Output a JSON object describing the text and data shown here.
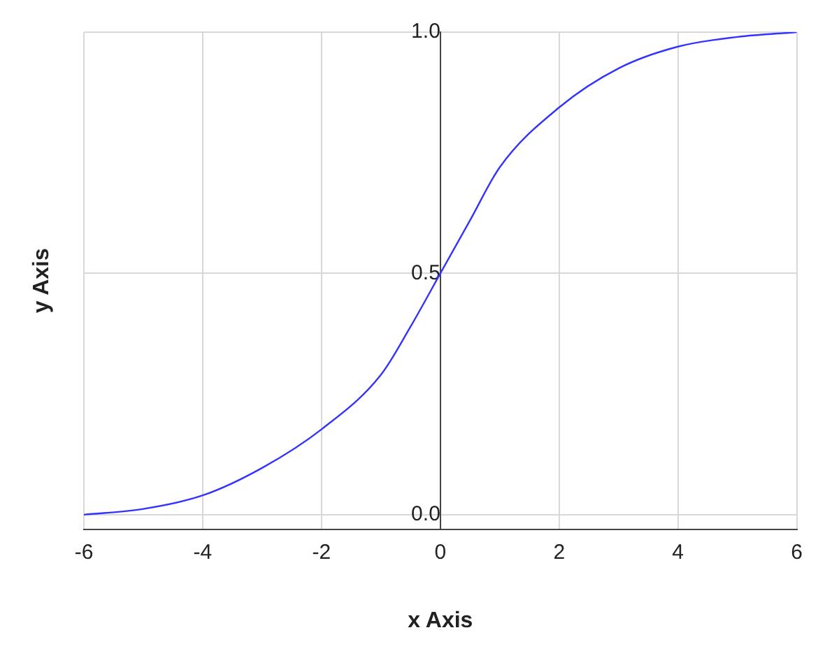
{
  "chart_data": {
    "type": "line",
    "xlabel": "x Axis",
    "ylabel": "y Axis",
    "x": [
      -6,
      -5,
      -4,
      -3,
      -2,
      -1,
      -0.5,
      0,
      0.5,
      1,
      2,
      3,
      4,
      5,
      6
    ],
    "series": [
      {
        "color": "#3333ff",
        "values": [
          0.0,
          0.012,
          0.04,
          0.097,
          0.177,
          0.29,
          0.39,
          0.5,
          0.61,
          0.72,
          0.844,
          0.925,
          0.97,
          0.99,
          1.0
        ]
      }
    ],
    "xlim": [
      -6,
      6
    ],
    "xticks": [
      -6,
      -4,
      -2,
      0,
      2,
      4,
      6
    ],
    "ylim": [
      -0.03,
      1.0
    ],
    "yticks": [
      {
        "value": 0,
        "label": "0.0"
      },
      {
        "value": 0.5,
        "label": "0.5"
      },
      {
        "value": 1,
        "label": "1.0"
      }
    ],
    "grid": true,
    "legend": false,
    "marker": "none",
    "line_style": "solid"
  }
}
